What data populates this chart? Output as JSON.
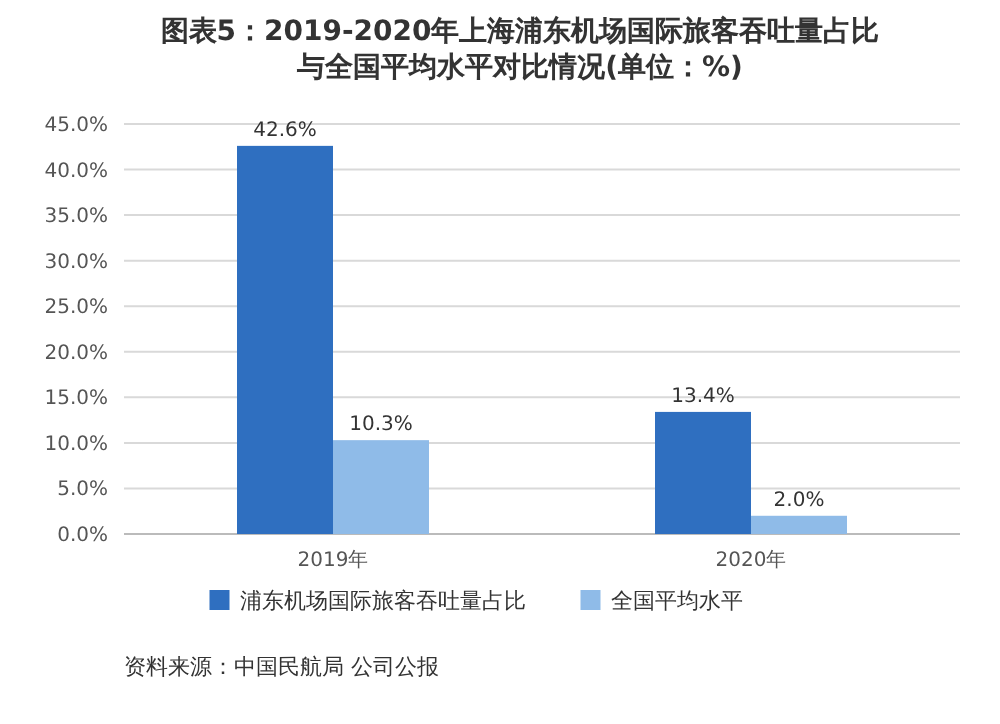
{
  "chart_data": {
    "type": "bar",
    "title": "图表5：2019-2020年上海浦东机场国际旅客吞吐量占比与全国平均水平对比情况(单位：%)",
    "categories": [
      "2019年",
      "2020年"
    ],
    "series": [
      {
        "name": "浦东机场国际旅客吞吐量占比",
        "color": "#2f6fc0",
        "values": [
          42.6,
          13.4
        ],
        "value_labels": [
          "42.6%",
          "13.4%"
        ]
      },
      {
        "name": "全国平均水平",
        "color": "#8fbbe8",
        "values": [
          10.3,
          2.0
        ],
        "value_labels": [
          "10.3%",
          "2.0%"
        ]
      }
    ],
    "ylim": [
      0,
      45
    ],
    "yticks": [
      {
        "value": 0,
        "label": "0.0%"
      },
      {
        "value": 5,
        "label": "5.0%"
      },
      {
        "value": 10,
        "label": "10.0%"
      },
      {
        "value": 15,
        "label": "15.0%"
      },
      {
        "value": 20,
        "label": "20.0%"
      },
      {
        "value": 25,
        "label": "25.0%"
      },
      {
        "value": 30,
        "label": "30.0%"
      },
      {
        "value": 35,
        "label": "35.0%"
      },
      {
        "value": 40,
        "label": "40.0%"
      },
      {
        "value": 45,
        "label": "45.0%"
      }
    ],
    "grid": "y",
    "legend": "bottom",
    "annotations": [
      "资料来源：中国民航局 公司公报"
    ]
  }
}
